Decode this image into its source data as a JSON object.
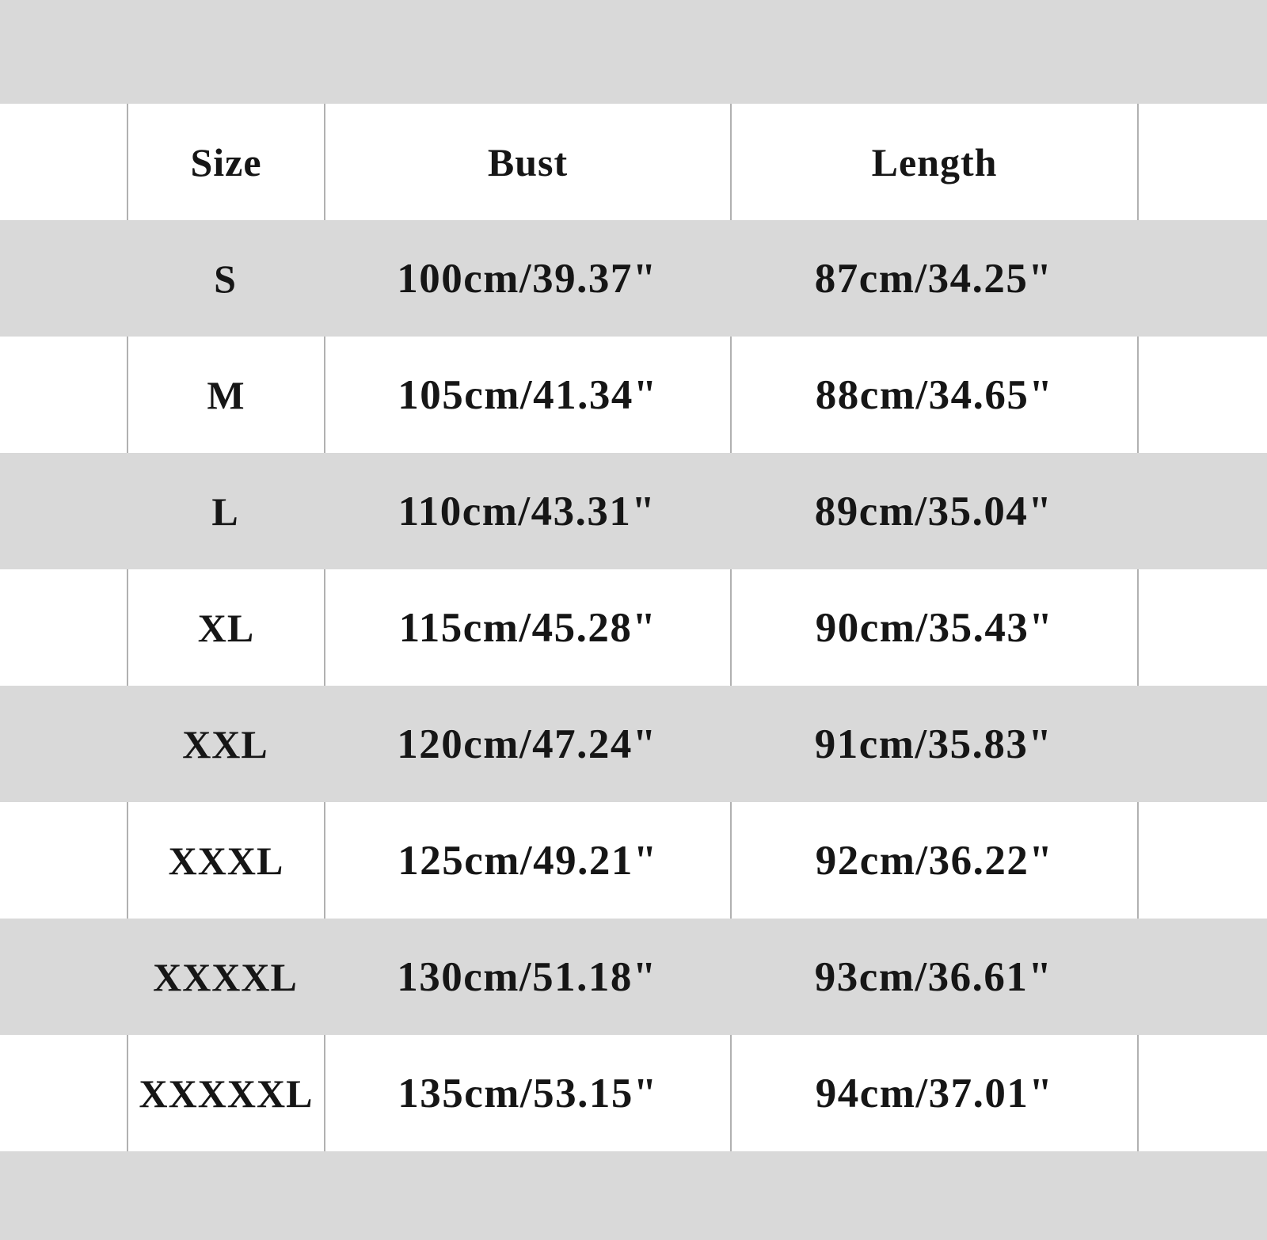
{
  "page": {
    "background_color": "#d9d9d9",
    "row_color": "#ffffff",
    "alt_row_color": "#d9d9d9",
    "grid_line_color": "#b1b1b1",
    "text_color": "#161616"
  },
  "table": {
    "headers": {
      "size": "Size",
      "bust": "Bust",
      "length": "Length"
    },
    "rows": [
      {
        "size": "S",
        "bust": "100cm/39.37\"",
        "length": "87cm/34.25\""
      },
      {
        "size": "M",
        "bust": "105cm/41.34\"",
        "length": "88cm/34.65\""
      },
      {
        "size": "L",
        "bust": "110cm/43.31\"",
        "length": "89cm/35.04\""
      },
      {
        "size": "XL",
        "bust": "115cm/45.28\"",
        "length": "90cm/35.43\""
      },
      {
        "size": "XXL",
        "bust": "120cm/47.24\"",
        "length": "91cm/35.83\""
      },
      {
        "size": "XXXL",
        "bust": "125cm/49.21\"",
        "length": "92cm/36.22\""
      },
      {
        "size": "XXXXL",
        "bust": "130cm/51.18\"",
        "length": "93cm/36.61\""
      },
      {
        "size": "XXXXXL",
        "bust": "135cm/53.15\"",
        "length": "94cm/37.01\""
      }
    ]
  }
}
